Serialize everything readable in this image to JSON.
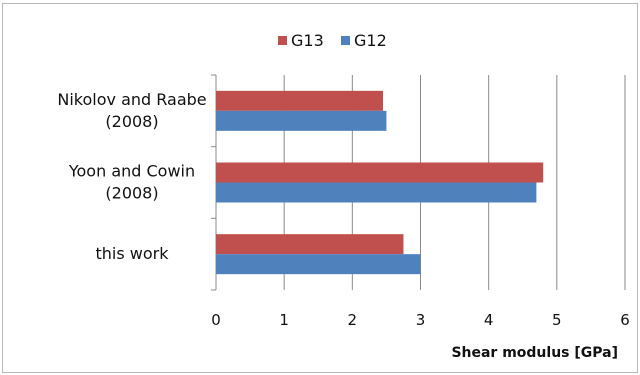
{
  "chart_data": {
    "type": "bar",
    "orientation": "horizontal",
    "categories": [
      [
        "Nikolov and Raabe",
        "(2008)"
      ],
      [
        "Yoon and Cowin",
        "(2008)"
      ],
      [
        "this work"
      ]
    ],
    "series": [
      {
        "name": "G13",
        "color": "#c0504d",
        "values": [
          2.45,
          4.8,
          2.75
        ]
      },
      {
        "name": "G12",
        "color": "#4f81bd",
        "values": [
          2.5,
          4.7,
          3.0
        ]
      }
    ],
    "xlabel": "Shear modulus [GPa]",
    "xlim": [
      0,
      6
    ],
    "xticks": [
      "0",
      "1",
      "2",
      "3",
      "4",
      "5",
      "6"
    ],
    "grid": true,
    "legend_position": "top"
  }
}
